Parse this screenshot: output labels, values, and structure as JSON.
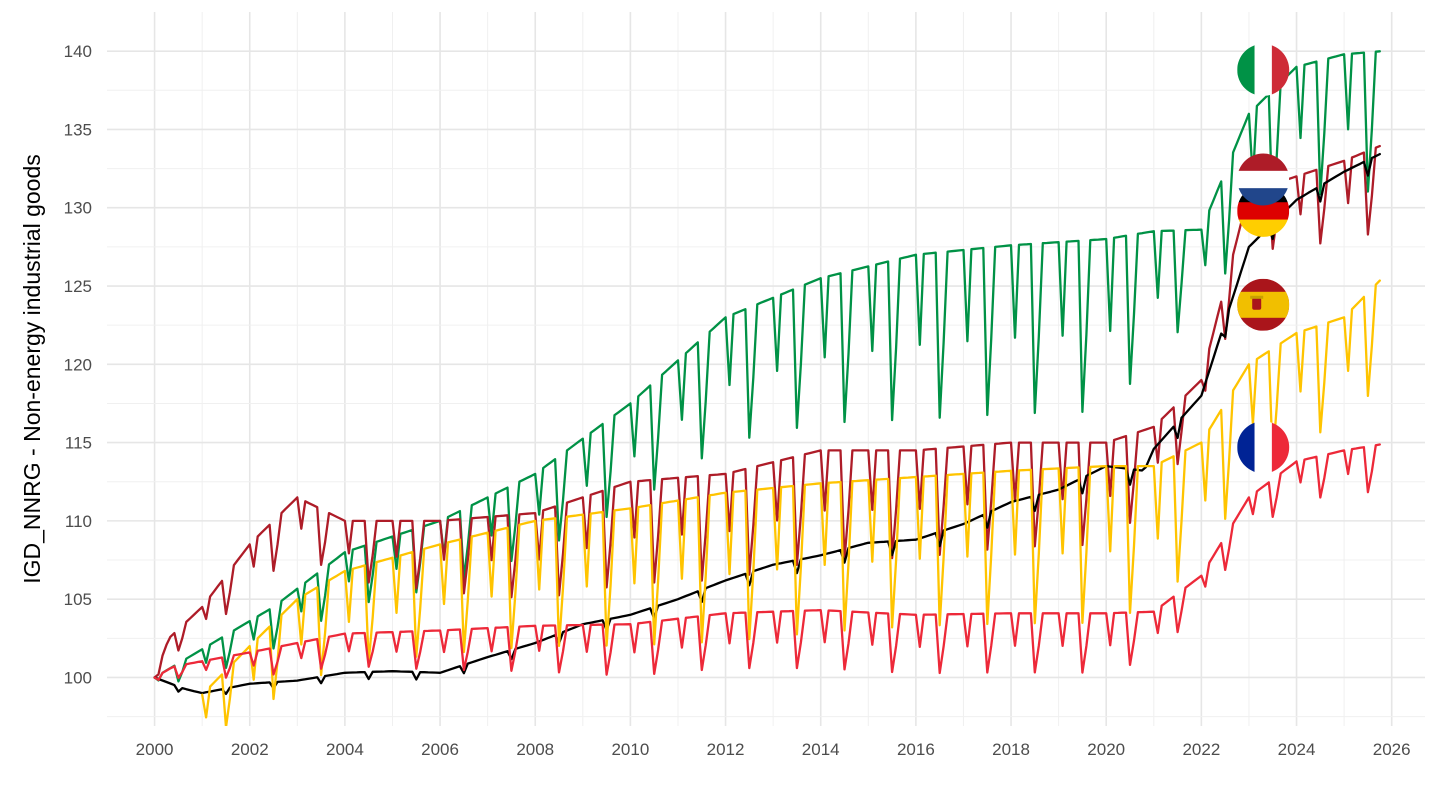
{
  "chart_data": {
    "type": "line",
    "title": "",
    "xlabel": "",
    "ylabel": "IGD_NNRG - Non-energy industrial goods",
    "xlim": [
      1999.0,
      2026.7
    ],
    "ylim": [
      96.9,
      142.5
    ],
    "x_ticks": [
      "2000",
      "2002",
      "2004",
      "2006",
      "2008",
      "2010",
      "2012",
      "2014",
      "2016",
      "2018",
      "2020",
      "2022",
      "2024",
      "2026"
    ],
    "y_ticks": [
      "100",
      "105",
      "110",
      "115",
      "120",
      "125",
      "130",
      "135",
      "140"
    ],
    "grid": true,
    "legend": "flags at line ends",
    "frequency": "monthly",
    "series": [
      {
        "color": "#009246",
        "flag": "italy-flag",
        "start": 2000.0,
        "anchors": [
          [
            2000,
            100
          ],
          [
            2002.5,
            104.5
          ],
          [
            2004,
            108.0
          ],
          [
            2006,
            110.0
          ],
          [
            2008,
            113.0
          ],
          [
            2010,
            117.5
          ],
          [
            2012,
            123.0
          ],
          [
            2014,
            125.5
          ],
          [
            2016,
            127.0
          ],
          [
            2018,
            127.6
          ],
          [
            2020,
            128.0
          ],
          [
            2021,
            128.5
          ],
          [
            2022,
            128.6
          ],
          [
            2023,
            136.0
          ],
          [
            2024,
            139.0
          ],
          [
            2025,
            139.8
          ],
          [
            2025.8,
            140.0
          ]
        ],
        "amplitude": [
          [
            2000,
            0.5
          ],
          [
            2001,
            1.8
          ],
          [
            2004,
            3.5
          ],
          [
            2008,
            5.0
          ],
          [
            2012,
            8.0
          ],
          [
            2016,
            10.5
          ],
          [
            2020,
            11.0
          ],
          [
            2022,
            5.0
          ],
          [
            2023,
            8.0
          ],
          [
            2025.8,
            9.0
          ]
        ],
        "dip_months": [
          1,
          2,
          7,
          8
        ]
      },
      {
        "color": "#AE1C28",
        "flag": "netherlands-flag",
        "start": 2000.0,
        "anchors": [
          [
            2000,
            100
          ],
          [
            2000.3,
            102.5
          ],
          [
            2001,
            104.5
          ],
          [
            2002,
            108.5
          ],
          [
            2003,
            111.5
          ],
          [
            2004,
            110.0
          ],
          [
            2006,
            110.0
          ],
          [
            2008,
            110.5
          ],
          [
            2010,
            112.5
          ],
          [
            2012,
            113.0
          ],
          [
            2014,
            114.5
          ],
          [
            2016,
            114.5
          ],
          [
            2018,
            115.0
          ],
          [
            2020,
            115.0
          ],
          [
            2021,
            116.0
          ],
          [
            2022,
            119.0
          ],
          [
            2023,
            131.0
          ],
          [
            2024,
            132.0
          ],
          [
            2025,
            133.0
          ],
          [
            2025.8,
            134.0
          ]
        ],
        "amplitude": [
          [
            2000,
            0.8
          ],
          [
            2002,
            3.0
          ],
          [
            2006,
            4.5
          ],
          [
            2010,
            6.5
          ],
          [
            2014,
            7.0
          ],
          [
            2020,
            6.5
          ],
          [
            2022,
            3.0
          ],
          [
            2024,
            4.5
          ],
          [
            2025.8,
            5.5
          ]
        ],
        "dip_months": [
          1,
          2,
          7,
          8
        ]
      },
      {
        "color": "#000000",
        "flag": "germany-flag",
        "start": 2000.0,
        "anchors": [
          [
            2000,
            100
          ],
          [
            2000.6,
            99.3
          ],
          [
            2001,
            99.0
          ],
          [
            2002,
            99.6
          ],
          [
            2003,
            99.8
          ],
          [
            2004,
            100.3
          ],
          [
            2005,
            100.4
          ],
          [
            2006,
            100.3
          ],
          [
            2007,
            101.3
          ],
          [
            2008,
            102.2
          ],
          [
            2009,
            103.4
          ],
          [
            2010,
            104.0
          ],
          [
            2011,
            105.0
          ],
          [
            2012,
            106.2
          ],
          [
            2013,
            107.2
          ],
          [
            2014,
            107.8
          ],
          [
            2015,
            108.6
          ],
          [
            2016,
            108.8
          ],
          [
            2017,
            109.8
          ],
          [
            2018,
            111.2
          ],
          [
            2019,
            112.0
          ],
          [
            2020,
            113.5
          ],
          [
            2020.8,
            113.2
          ],
          [
            2021,
            114.6
          ],
          [
            2022,
            118.0
          ],
          [
            2023,
            127.5
          ],
          [
            2024,
            130.5
          ],
          [
            2025,
            132.3
          ],
          [
            2025.8,
            133.5
          ]
        ],
        "amplitude": [
          [
            2000,
            0.3
          ],
          [
            2006,
            0.5
          ],
          [
            2012,
            0.8
          ],
          [
            2020,
            1.0
          ],
          [
            2025.8,
            1.0
          ]
        ],
        "dip_months": [
          1,
          7
        ]
      },
      {
        "color": "#FFC400",
        "flag": "spain-flag",
        "start": 2001.0,
        "anchors": [
          [
            2001,
            98.9
          ],
          [
            2002,
            102.0
          ],
          [
            2003,
            105.0
          ],
          [
            2004,
            106.8
          ],
          [
            2006,
            108.5
          ],
          [
            2008,
            110.0
          ],
          [
            2010,
            110.8
          ],
          [
            2012,
            111.8
          ],
          [
            2014,
            112.4
          ],
          [
            2016,
            112.8
          ],
          [
            2018,
            113.2
          ],
          [
            2020,
            113.5
          ],
          [
            2021,
            113.5
          ],
          [
            2022,
            115.0
          ],
          [
            2023,
            120.0
          ],
          [
            2024,
            122.0
          ],
          [
            2025,
            123.0
          ],
          [
            2025.8,
            125.5
          ]
        ],
        "amplitude": [
          [
            2001,
            3.0
          ],
          [
            2003,
            5.5
          ],
          [
            2008,
            8.0
          ],
          [
            2012,
            9.5
          ],
          [
            2016,
            9.5
          ],
          [
            2020,
            10.0
          ],
          [
            2022,
            7.5
          ],
          [
            2025.8,
            6.5
          ]
        ],
        "dip_months": [
          1,
          2,
          7,
          8
        ]
      },
      {
        "color": "#ED2939",
        "flag": "france-flag",
        "start": 2000.0,
        "anchors": [
          [
            2000,
            100
          ],
          [
            2000.4,
            100.7
          ],
          [
            2002,
            101.6
          ],
          [
            2004,
            102.8
          ],
          [
            2006,
            103.0
          ],
          [
            2008,
            103.3
          ],
          [
            2010,
            103.4
          ],
          [
            2012,
            104.1
          ],
          [
            2014,
            104.3
          ],
          [
            2016,
            104.0
          ],
          [
            2018,
            104.1
          ],
          [
            2020,
            104.1
          ],
          [
            2021,
            104.2
          ],
          [
            2022,
            106.5
          ],
          [
            2023,
            111.5
          ],
          [
            2024,
            113.8
          ],
          [
            2025,
            114.5
          ],
          [
            2025.8,
            114.9
          ]
        ],
        "amplitude": [
          [
            2000,
            0.5
          ],
          [
            2002,
            1.6
          ],
          [
            2006,
            2.5
          ],
          [
            2010,
            3.3
          ],
          [
            2014,
            3.7
          ],
          [
            2020,
            3.8
          ],
          [
            2022,
            2.0
          ],
          [
            2025.8,
            3.0
          ]
        ],
        "dip_months": [
          1,
          2,
          7,
          8
        ]
      }
    ]
  }
}
